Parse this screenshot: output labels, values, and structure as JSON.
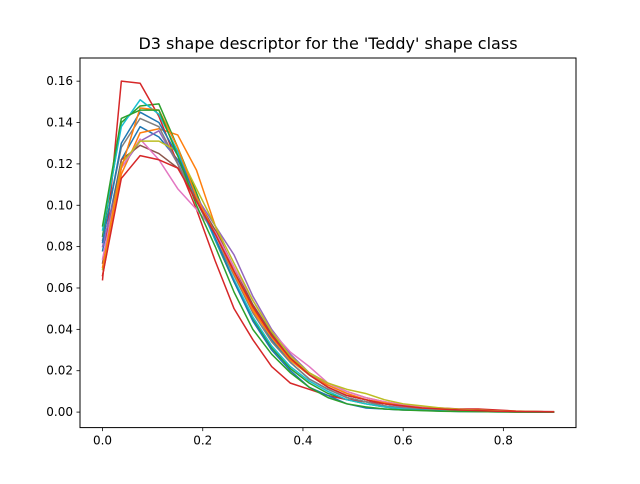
{
  "chart_data": {
    "type": "line",
    "title": "D3 shape descriptor for the 'Teddy' shape class",
    "xlabel": "",
    "ylabel": "",
    "xlim": [
      -0.045,
      0.945
    ],
    "ylim": [
      -0.0075,
      0.1712
    ],
    "grid": false,
    "x_ticks": [
      0.0,
      0.2,
      0.4,
      0.6,
      0.8
    ],
    "x_tick_labels": [
      "0.0",
      "0.2",
      "0.4",
      "0.6",
      "0.8"
    ],
    "y_ticks": [
      0.0,
      0.02,
      0.04,
      0.06,
      0.08,
      0.1,
      0.12,
      0.14,
      0.16
    ],
    "y_tick_labels": [
      "0.00",
      "0.02",
      "0.04",
      "0.06",
      "0.08",
      "0.10",
      "0.12",
      "0.14",
      "0.16"
    ],
    "x": [
      0.0,
      0.0375,
      0.075,
      0.1125,
      0.15,
      0.1875,
      0.225,
      0.2625,
      0.3,
      0.3375,
      0.375,
      0.4125,
      0.45,
      0.4875,
      0.525,
      0.5625,
      0.6,
      0.6375,
      0.675,
      0.7125,
      0.75,
      0.7875,
      0.825,
      0.8625,
      0.9
    ],
    "series": [
      {
        "color": "#1f77b4",
        "values": [
          0.078,
          0.122,
          0.138,
          0.133,
          0.122,
          0.104,
          0.086,
          0.068,
          0.05,
          0.035,
          0.024,
          0.016,
          0.011,
          0.007,
          0.005,
          0.003,
          0.002,
          0.0015,
          0.001,
          0.0008,
          0.0006,
          0.0004,
          0.0003,
          0.0002,
          0.0001
        ]
      },
      {
        "color": "#ff7f0e",
        "values": [
          0.066,
          0.115,
          0.135,
          0.137,
          0.134,
          0.117,
          0.09,
          0.068,
          0.05,
          0.037,
          0.026,
          0.019,
          0.014,
          0.01,
          0.007,
          0.005,
          0.0035,
          0.0025,
          0.0018,
          0.0012,
          0.0008,
          0.0005,
          0.0003,
          0.0002,
          0.0001
        ]
      },
      {
        "color": "#2ca02c",
        "values": [
          0.085,
          0.14,
          0.148,
          0.149,
          0.128,
          0.106,
          0.083,
          0.063,
          0.045,
          0.031,
          0.021,
          0.014,
          0.009,
          0.006,
          0.004,
          0.0025,
          0.0015,
          0.001,
          0.0007,
          0.0005,
          0.0003,
          0.0002,
          0.0001,
          0.0001,
          0.0
        ]
      },
      {
        "color": "#d62728",
        "values": [
          0.064,
          0.16,
          0.159,
          0.143,
          0.12,
          0.098,
          0.073,
          0.05,
          0.035,
          0.022,
          0.014,
          0.011,
          0.008,
          0.006,
          0.005,
          0.004,
          0.003,
          0.0025,
          0.002,
          0.0015,
          0.0015,
          0.001,
          0.0005,
          0.0003,
          0.0002
        ]
      },
      {
        "color": "#9467bd",
        "values": [
          0.08,
          0.118,
          0.131,
          0.136,
          0.12,
          0.104,
          0.09,
          0.076,
          0.056,
          0.04,
          0.028,
          0.019,
          0.013,
          0.009,
          0.006,
          0.004,
          0.0025,
          0.0018,
          0.0012,
          0.0008,
          0.0005,
          0.0003,
          0.0002,
          0.0001,
          0.0
        ]
      },
      {
        "color": "#8c564b",
        "values": [
          0.072,
          0.122,
          0.129,
          0.125,
          0.118,
          0.103,
          0.088,
          0.07,
          0.052,
          0.038,
          0.026,
          0.018,
          0.012,
          0.008,
          0.006,
          0.004,
          0.003,
          0.002,
          0.0015,
          0.001,
          0.0007,
          0.0005,
          0.0003,
          0.0002,
          0.0001
        ]
      },
      {
        "color": "#e377c2",
        "values": [
          0.074,
          0.118,
          0.132,
          0.122,
          0.108,
          0.098,
          0.087,
          0.07,
          0.054,
          0.039,
          0.029,
          0.022,
          0.014,
          0.01,
          0.007,
          0.005,
          0.0035,
          0.0025,
          0.0018,
          0.0012,
          0.0008,
          0.0005,
          0.0003,
          0.0002,
          0.0001
        ]
      },
      {
        "color": "#7f7f7f",
        "values": [
          0.083,
          0.128,
          0.142,
          0.138,
          0.12,
          0.102,
          0.084,
          0.066,
          0.048,
          0.034,
          0.024,
          0.016,
          0.011,
          0.007,
          0.005,
          0.003,
          0.002,
          0.0015,
          0.001,
          0.0007,
          0.0005,
          0.0003,
          0.0002,
          0.0001,
          0.0
        ]
      },
      {
        "color": "#bcbd22",
        "values": [
          0.069,
          0.12,
          0.131,
          0.131,
          0.126,
          0.108,
          0.09,
          0.072,
          0.054,
          0.039,
          0.027,
          0.019,
          0.014,
          0.011,
          0.009,
          0.006,
          0.004,
          0.003,
          0.002,
          0.0013,
          0.0009,
          0.0006,
          0.0004,
          0.0002,
          0.0001
        ]
      },
      {
        "color": "#17becf",
        "values": [
          0.088,
          0.138,
          0.151,
          0.144,
          0.126,
          0.104,
          0.083,
          0.064,
          0.046,
          0.032,
          0.022,
          0.015,
          0.01,
          0.006,
          0.004,
          0.0025,
          0.0015,
          0.001,
          0.0007,
          0.0005,
          0.0003,
          0.0002,
          0.0001,
          0.0001,
          0.0
        ]
      },
      {
        "color": "#1f77b4",
        "values": [
          0.082,
          0.13,
          0.145,
          0.14,
          0.124,
          0.104,
          0.084,
          0.063,
          0.044,
          0.03,
          0.02,
          0.012,
          0.008,
          0.004,
          0.002,
          0.0015,
          0.001,
          0.0008,
          0.0005,
          0.0003,
          0.0002,
          0.0001,
          0.0001,
          0.0,
          0.0
        ]
      },
      {
        "color": "#ff7f0e",
        "values": [
          0.07,
          0.118,
          0.147,
          0.146,
          0.128,
          0.104,
          0.086,
          0.067,
          0.049,
          0.036,
          0.025,
          0.018,
          0.013,
          0.009,
          0.006,
          0.0045,
          0.003,
          0.002,
          0.0014,
          0.001,
          0.0007,
          0.0004,
          0.0003,
          0.0002,
          0.0001
        ]
      },
      {
        "color": "#2ca02c",
        "values": [
          0.09,
          0.142,
          0.146,
          0.146,
          0.124,
          0.1,
          0.08,
          0.058,
          0.04,
          0.028,
          0.019,
          0.012,
          0.007,
          0.004,
          0.0025,
          0.0015,
          0.001,
          0.0007,
          0.0004,
          0.0003,
          0.0002,
          0.0001,
          0.0,
          0.0,
          0.0
        ]
      },
      {
        "color": "#d62728",
        "values": [
          0.066,
          0.113,
          0.124,
          0.122,
          0.118,
          0.102,
          0.086,
          0.068,
          0.051,
          0.037,
          0.026,
          0.018,
          0.012,
          0.008,
          0.006,
          0.004,
          0.003,
          0.002,
          0.0015,
          0.001,
          0.0007,
          0.0004,
          0.0003,
          0.0002,
          0.0001
        ]
      }
    ]
  }
}
